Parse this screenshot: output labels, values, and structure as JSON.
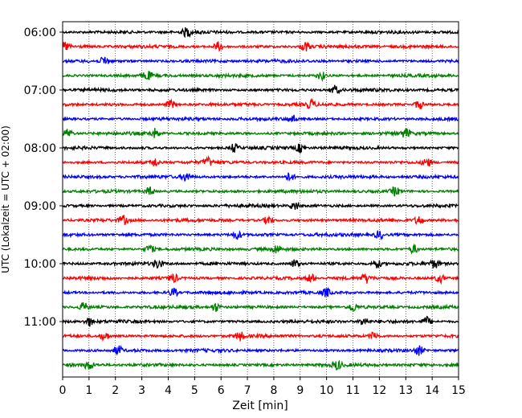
{
  "chart_data": {
    "type": "line",
    "title": "",
    "xlabel": "Zeit  [min]",
    "ylabel": "UTC (Lokalzeit = UTC + 02:00)",
    "xlim": [
      0,
      15
    ],
    "x_ticks": [
      0,
      1,
      2,
      3,
      4,
      5,
      6,
      7,
      8,
      9,
      10,
      11,
      12,
      13,
      14,
      15
    ],
    "y_tick_labels": [
      "06:00",
      "07:00",
      "08:00",
      "09:00",
      "10:00",
      "11:00"
    ],
    "grid": {
      "x": true,
      "y": false,
      "style": "dotted"
    },
    "trace_colors": [
      "#000000",
      "#ff0000",
      "#0000ff",
      "#008000"
    ],
    "series": [
      {
        "start": "06:00",
        "color": "#000000",
        "events": [
          4.7
        ]
      },
      {
        "start": "06:15",
        "color": "#ff0000",
        "events": [
          0.1,
          5.9,
          9.2
        ]
      },
      {
        "start": "06:30",
        "color": "#0000ff",
        "events": [
          1.6
        ]
      },
      {
        "start": "06:45",
        "color": "#008000",
        "events": [
          3.2,
          9.8
        ]
      },
      {
        "start": "07:00",
        "color": "#000000",
        "events": [
          10.3
        ]
      },
      {
        "start": "07:15",
        "color": "#ff0000",
        "events": [
          4.1,
          9.4,
          13.5
        ]
      },
      {
        "start": "07:30",
        "color": "#0000ff",
        "events": [
          8.7
        ]
      },
      {
        "start": "07:45",
        "color": "#008000",
        "events": [
          0.2,
          3.5,
          13.0
        ]
      },
      {
        "start": "08:00",
        "color": "#000000",
        "events": [
          6.5,
          9.0
        ]
      },
      {
        "start": "08:15",
        "color": "#ff0000",
        "events": [
          3.5,
          5.5,
          13.8
        ]
      },
      {
        "start": "08:30",
        "color": "#0000ff",
        "events": [
          4.7,
          8.6
        ]
      },
      {
        "start": "08:45",
        "color": "#008000",
        "events": [
          3.3,
          12.6
        ]
      },
      {
        "start": "09:00",
        "color": "#000000",
        "events": [
          8.8
        ]
      },
      {
        "start": "09:15",
        "color": "#ff0000",
        "events": [
          2.3,
          7.8,
          13.5
        ]
      },
      {
        "start": "09:30",
        "color": "#0000ff",
        "events": [
          6.6,
          12.0
        ]
      },
      {
        "start": "09:45",
        "color": "#008000",
        "events": [
          3.3,
          8.1,
          13.3
        ]
      },
      {
        "start": "10:00",
        "color": "#000000",
        "events": [
          3.6,
          8.8,
          11.9,
          14.1
        ]
      },
      {
        "start": "10:15",
        "color": "#ff0000",
        "events": [
          4.2,
          9.4,
          11.5,
          14.3
        ]
      },
      {
        "start": "10:30",
        "color": "#0000ff",
        "events": [
          4.2,
          10.0
        ]
      },
      {
        "start": "10:45",
        "color": "#008000",
        "events": [
          0.8,
          5.8,
          11.0
        ]
      },
      {
        "start": "11:00",
        "color": "#000000",
        "events": [
          1.0,
          11.4,
          13.8
        ]
      },
      {
        "start": "11:15",
        "color": "#ff0000",
        "events": [
          1.6,
          6.7,
          11.8
        ]
      },
      {
        "start": "11:30",
        "color": "#0000ff",
        "events": [
          2.1,
          13.5
        ]
      },
      {
        "start": "11:45",
        "color": "#008000",
        "events": [
          1.0,
          10.4
        ]
      }
    ]
  }
}
